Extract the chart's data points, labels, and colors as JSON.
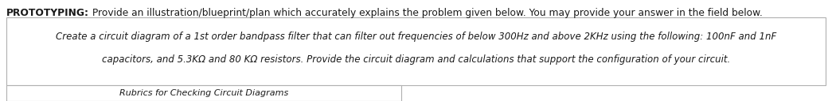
{
  "title_bold": "PROTOTYPING:",
  "title_normal": " Provide an illustration/blueprint/plan which accurately explains the problem given below. You may provide your answer in the field below.",
  "body_line1": "Create a circuit diagram of a 1st order bandpass filter that can filter out frequencies of below 300Hz and above 2KHz using the following: 100nF and 1nF",
  "body_line2": "capacitors, and 5.3KΩ and 80 KΩ resistors. Provide the circuit diagram and calculations that support the configuration of your circuit.",
  "footer_label": "Rubrics for Checking Circuit Diagrams",
  "bg_color": "#ffffff",
  "box_edge_color": "#b0b0b0",
  "text_color": "#1a1a1a",
  "title_fontsize": 8.8,
  "body_fontsize": 8.5,
  "footer_fontsize": 8.0,
  "fig_width": 10.45,
  "fig_height": 1.28,
  "dpi": 100
}
